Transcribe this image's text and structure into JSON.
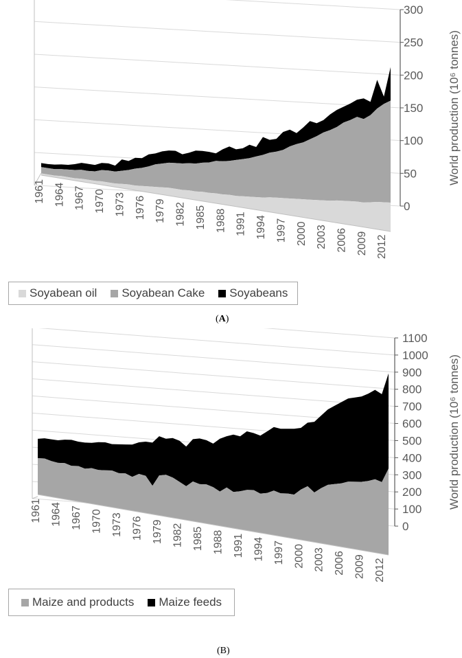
{
  "chart_data": [
    {
      "type": "area",
      "stacked": true,
      "caption_prefix": "(",
      "caption_letter": "A",
      "caption_suffix": ")",
      "ylabel": "World production (10⁶ tonnes)",
      "ylim": [
        0,
        300
      ],
      "yticks": [
        "0",
        "50",
        "100",
        "150",
        "200",
        "250",
        "300"
      ],
      "xticks": [
        "1961",
        "1964",
        "1967",
        "1970",
        "1973",
        "1976",
        "1979",
        "1982",
        "1985",
        "1988",
        "1991",
        "1994",
        "1997",
        "2000",
        "2003",
        "2006",
        "2009",
        "2012"
      ],
      "x": [
        1961,
        1962,
        1963,
        1964,
        1965,
        1966,
        1967,
        1968,
        1969,
        1970,
        1971,
        1972,
        1973,
        1974,
        1975,
        1976,
        1977,
        1978,
        1979,
        1980,
        1981,
        1982,
        1983,
        1984,
        1985,
        1986,
        1987,
        1988,
        1989,
        1990,
        1991,
        1992,
        1993,
        1994,
        1995,
        1996,
        1997,
        1998,
        1999,
        2000,
        2001,
        2002,
        2003,
        2004,
        2005,
        2006,
        2007,
        2008,
        2009,
        2010,
        2011,
        2012,
        2013
      ],
      "series": [
        {
          "name": "Soyabean oil",
          "color": "#d9d9d9",
          "values": [
            3,
            3,
            3,
            4,
            4,
            4,
            5,
            5,
            5,
            6,
            6,
            6,
            7,
            8,
            8,
            9,
            10,
            11,
            12,
            13,
            13,
            13,
            14,
            14,
            15,
            15,
            16,
            16,
            17,
            17,
            18,
            19,
            20,
            21,
            23,
            24,
            25,
            26,
            27,
            28,
            29,
            30,
            31,
            32,
            34,
            35,
            36,
            37,
            37,
            39,
            41,
            42,
            43
          ]
        },
        {
          "name": "Soyabean Cake",
          "color": "#a6a6a6",
          "values": [
            11,
            11,
            11,
            12,
            13,
            14,
            15,
            15,
            16,
            19,
            20,
            20,
            22,
            24,
            28,
            30,
            33,
            37,
            39,
            41,
            42,
            43,
            44,
            45,
            47,
            49,
            52,
            53,
            54,
            57,
            59,
            61,
            64,
            67,
            70,
            72,
            75,
            81,
            85,
            88,
            93,
            98,
            104,
            108,
            112,
            119,
            123,
            128,
            126,
            131,
            140,
            147,
            152
          ]
        },
        {
          "name": "Soyabeans",
          "color": "#000000",
          "values": [
            7,
            7,
            8,
            8,
            8,
            10,
            12,
            12,
            11,
            12,
            12,
            10,
            19,
            15,
            18,
            16,
            20,
            18,
            20,
            20,
            20,
            15,
            17,
            21,
            19,
            17,
            12,
            19,
            23,
            17,
            17,
            21,
            15,
            28,
            20,
            20,
            28,
            26,
            17,
            23,
            28,
            20,
            19,
            24,
            26,
            24,
            25,
            26,
            31,
            20,
            43,
            11,
            50
          ]
        }
      ]
    },
    {
      "type": "area",
      "stacked": true,
      "caption_prefix": "(",
      "caption_letter": "B",
      "caption_suffix": ")",
      "ylabel": "World production (10⁶ tonnes)",
      "ylim": [
        0,
        1100
      ],
      "yticks": [
        "0",
        "100",
        "200",
        "300",
        "400",
        "500",
        "600",
        "700",
        "800",
        "900",
        "1000",
        "1100"
      ],
      "xticks": [
        "1961",
        "1964",
        "1967",
        "1970",
        "1973",
        "1976",
        "1979",
        "1982",
        "1985",
        "1988",
        "1991",
        "1994",
        "1997",
        "2000",
        "2003",
        "2006",
        "2009",
        "2012"
      ],
      "x": [
        1961,
        1962,
        1963,
        1964,
        1965,
        1966,
        1967,
        1968,
        1969,
        1970,
        1971,
        1972,
        1973,
        1974,
        1975,
        1976,
        1977,
        1978,
        1979,
        1980,
        1981,
        1982,
        1983,
        1984,
        1985,
        1986,
        1987,
        1988,
        1989,
        1990,
        1991,
        1992,
        1993,
        1994,
        1995,
        1996,
        1997,
        1998,
        1999,
        2000,
        2001,
        2002,
        2003,
        2004,
        2005,
        2006,
        2007,
        2008,
        2009,
        2010,
        2011,
        2012,
        2013
      ],
      "series": [
        {
          "name": "Maize and products",
          "color": "#a6a6a6",
          "values": [
            235,
            240,
            230,
            225,
            230,
            220,
            225,
            215,
            225,
            220,
            225,
            230,
            220,
            225,
            210,
            235,
            230,
            175,
            245,
            255,
            245,
            225,
            205,
            240,
            230,
            235,
            225,
            205,
            235,
            215,
            225,
            240,
            245,
            230,
            240,
            260,
            250,
            255,
            255,
            290,
            315,
            285,
            315,
            340,
            350,
            360,
            375,
            380,
            385,
            395,
            410,
            400,
            480
          ]
        },
        {
          "name": "Maize feeds",
          "color": "#000000",
          "values": [
            125,
            130,
            140,
            145,
            150,
            165,
            155,
            165,
            160,
            175,
            175,
            165,
            180,
            180,
            200,
            195,
            210,
            265,
            240,
            220,
            240,
            250,
            240,
            255,
            275,
            265,
            260,
            315,
            305,
            340,
            325,
            345,
            335,
            340,
            360,
            370,
            375,
            375,
            380,
            355,
            365,
            405,
            415,
            430,
            445,
            460,
            470,
            475,
            480,
            490,
            500,
            490,
            530
          ]
        }
      ]
    }
  ],
  "legends": [
    {
      "items": [
        {
          "label": "Soyabean oil",
          "color": "#d9d9d9"
        },
        {
          "label": "Soyabean Cake",
          "color": "#a6a6a6"
        },
        {
          "label": "Soyabeans",
          "color": "#000000"
        }
      ]
    },
    {
      "items": [
        {
          "label": "Maize and products",
          "color": "#a6a6a6"
        },
        {
          "label": "Maize feeds",
          "color": "#000000"
        }
      ]
    }
  ]
}
